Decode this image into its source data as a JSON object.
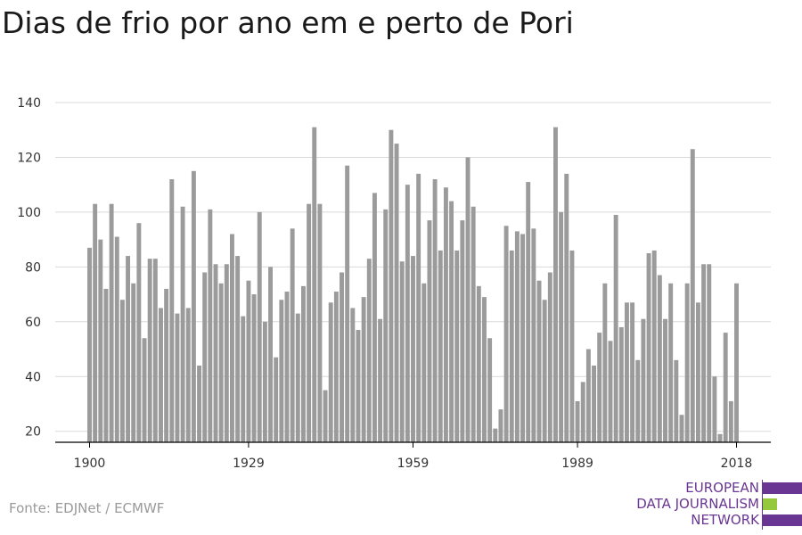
{
  "title": "Dias de frio por ano em e perto de Pori",
  "source": "Fonte: EDJNet / ECMWF",
  "logo": {
    "lines": [
      "EUROPEAN",
      "DATA JOURNALISM",
      "NETWORK"
    ],
    "colors": {
      "purple": "#6a3694",
      "green": "#94c83d"
    }
  },
  "colors": {
    "bar": "#9b9b9b",
    "grid": "#d9d9d9",
    "axis": "#000000"
  },
  "chart_data": {
    "type": "bar",
    "title": "Dias de frio por ano em e perto de Pori",
    "xlabel": "",
    "ylabel": "",
    "grid": true,
    "ylim": [
      16,
      140
    ],
    "yticks": [
      20,
      40,
      60,
      80,
      100,
      120,
      140
    ],
    "xticks": [
      1900,
      1929,
      1959,
      1989,
      2018
    ],
    "categories": [
      1900,
      1901,
      1902,
      1903,
      1904,
      1905,
      1906,
      1907,
      1908,
      1909,
      1910,
      1911,
      1912,
      1913,
      1914,
      1915,
      1916,
      1917,
      1918,
      1919,
      1920,
      1921,
      1922,
      1923,
      1924,
      1925,
      1926,
      1927,
      1928,
      1929,
      1930,
      1931,
      1932,
      1933,
      1934,
      1935,
      1936,
      1937,
      1938,
      1939,
      1940,
      1941,
      1942,
      1943,
      1944,
      1945,
      1946,
      1947,
      1948,
      1949,
      1950,
      1951,
      1952,
      1953,
      1954,
      1955,
      1956,
      1957,
      1958,
      1959,
      1960,
      1961,
      1962,
      1963,
      1964,
      1965,
      1966,
      1967,
      1968,
      1969,
      1970,
      1971,
      1972,
      1973,
      1974,
      1975,
      1976,
      1977,
      1978,
      1979,
      1980,
      1981,
      1982,
      1983,
      1984,
      1985,
      1986,
      1987,
      1988,
      1989,
      1990,
      1991,
      1992,
      1993,
      1994,
      1995,
      1996,
      1997,
      1998,
      1999,
      2000,
      2001,
      2002,
      2003,
      2004,
      2005,
      2006,
      2007,
      2008,
      2009,
      2010,
      2011,
      2012,
      2013,
      2014,
      2015,
      2016,
      2017,
      2018
    ],
    "values": [
      87,
      103,
      90,
      72,
      103,
      91,
      68,
      84,
      74,
      96,
      54,
      83,
      83,
      65,
      72,
      112,
      63,
      102,
      65,
      115,
      44,
      78,
      101,
      81,
      74,
      81,
      92,
      84,
      62,
      75,
      70,
      100,
      60,
      80,
      47,
      68,
      71,
      94,
      63,
      73,
      103,
      131,
      103,
      35,
      67,
      71,
      78,
      117,
      65,
      57,
      69,
      83,
      107,
      61,
      101,
      130,
      125,
      82,
      110,
      84,
      114,
      74,
      97,
      112,
      86,
      109,
      104,
      86,
      97,
      120,
      102,
      73,
      69,
      54,
      21,
      28,
      95,
      86,
      93,
      92,
      111,
      94,
      75,
      68,
      78,
      131,
      100,
      114,
      86,
      31,
      38,
      50,
      44,
      56,
      74,
      53,
      99,
      58,
      67,
      67,
      46,
      61,
      85,
      86,
      77,
      61,
      74,
      46,
      26,
      74,
      123,
      67,
      81,
      81,
      40,
      19,
      56,
      31,
      74
    ]
  }
}
